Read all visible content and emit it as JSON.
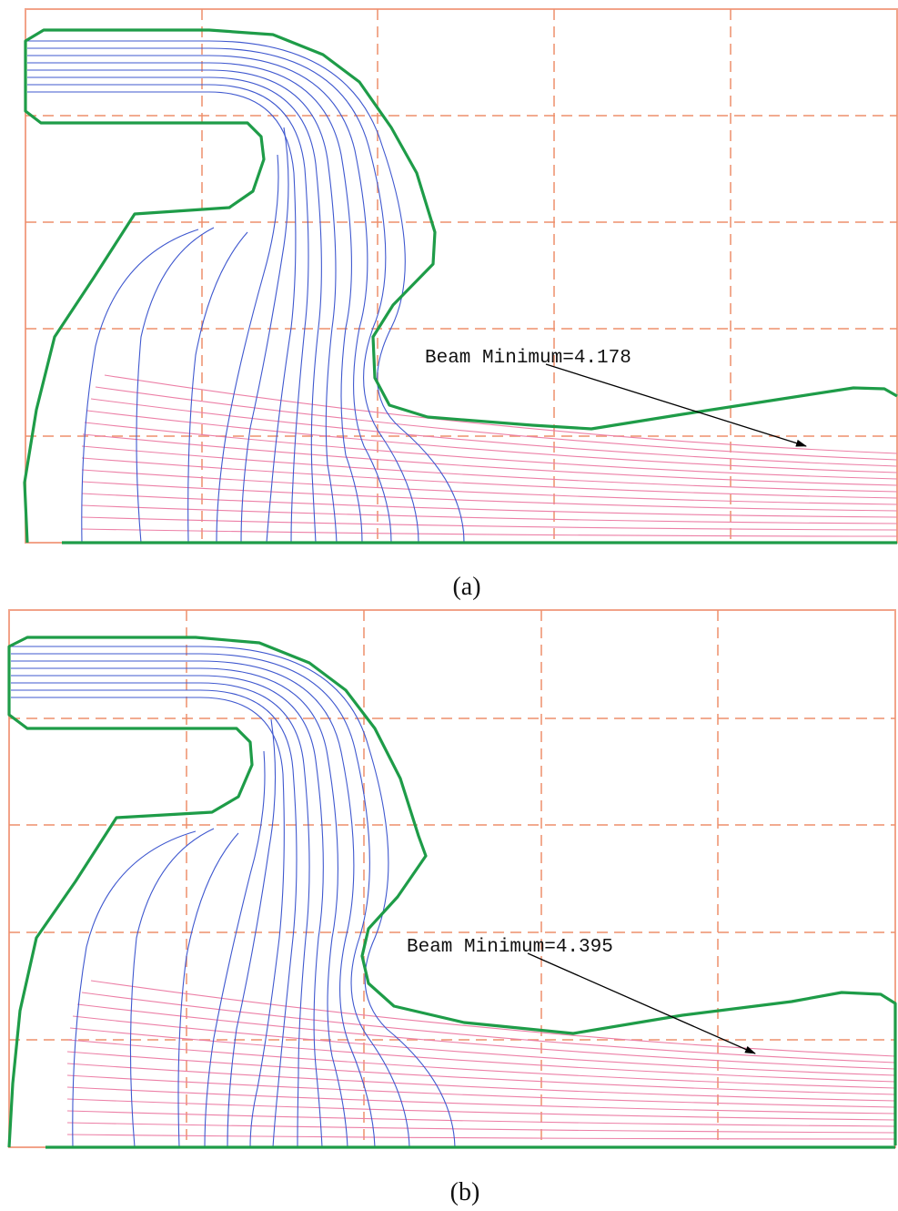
{
  "panels": [
    {
      "id": "a",
      "annotation": "Beam Minimum=4.178",
      "beam_minimum": 4.178,
      "caption": "(a)"
    },
    {
      "id": "b",
      "annotation": "Beam Minimum=4.395",
      "beam_minimum": 4.395,
      "caption": "(b)"
    }
  ],
  "colors": {
    "grid": "#ee8f6b",
    "electrode": "#1e9c48",
    "equipotential": "#3f58cf",
    "beam_trajectory": "#ec7fa6",
    "arrow": "#000000"
  }
}
